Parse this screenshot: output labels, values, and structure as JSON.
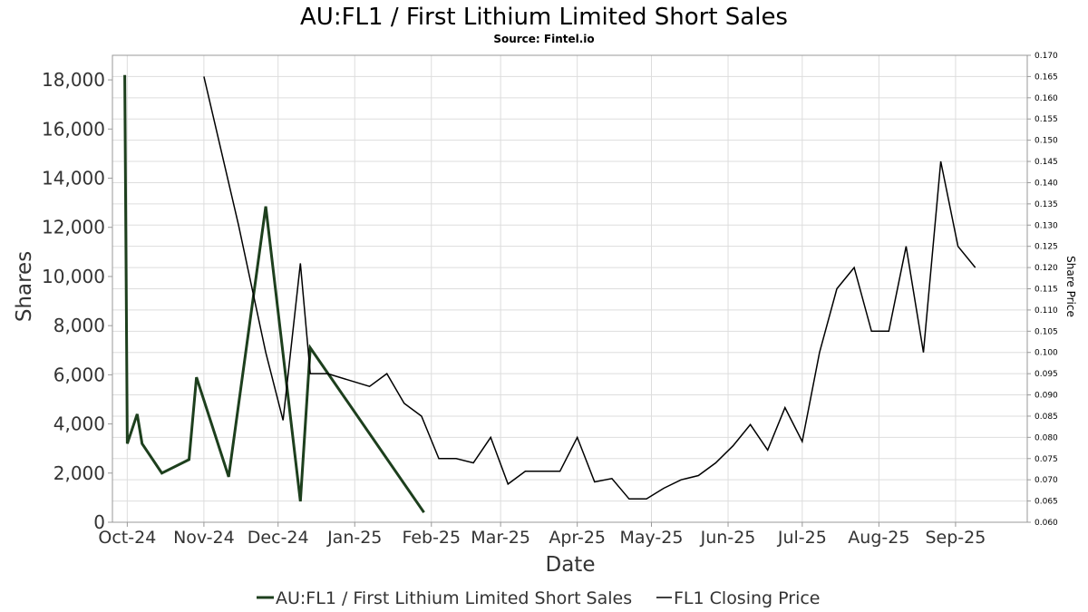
{
  "chart_data": {
    "type": "line",
    "title": "AU:FL1 / First Lithium Limited Short Sales",
    "subtitle": "Source: Fintel.io",
    "xlabel": "Date",
    "ylabel": "Shares",
    "y2label": "Share Price",
    "ylim": [
      0,
      19000
    ],
    "y2lim": [
      0.06,
      0.17
    ],
    "xlim": [
      "2024-09-25",
      "2025-09-30"
    ],
    "grid": true,
    "legend_position": "bottom",
    "yticks": [
      0,
      2000,
      4000,
      6000,
      8000,
      10000,
      12000,
      14000,
      16000,
      18000
    ],
    "ytick_labels": [
      "0",
      "2,000",
      "4,000",
      "6,000",
      "8,000",
      "10,000",
      "12,000",
      "14,000",
      "16,000",
      "18,000"
    ],
    "y2ticks": [
      0.06,
      0.065,
      0.07,
      0.075,
      0.08,
      0.085,
      0.09,
      0.095,
      0.1,
      0.105,
      0.11,
      0.115,
      0.12,
      0.125,
      0.13,
      0.135,
      0.14,
      0.145,
      0.15,
      0.155,
      0.16,
      0.165,
      0.17
    ],
    "y2tick_labels": [
      "0.060",
      "0.065",
      "0.070",
      "0.075",
      "0.080",
      "0.085",
      "0.090",
      "0.095",
      "0.100",
      "0.105",
      "0.110",
      "0.115",
      "0.120",
      "0.125",
      "0.130",
      "0.135",
      "0.140",
      "0.145",
      "0.150",
      "0.155",
      "0.160",
      "0.165",
      "0.170"
    ],
    "xticks": [
      "2024-10-01",
      "2024-11-01",
      "2024-12-01",
      "2025-01-01",
      "2025-02-01",
      "2025-03-01",
      "2025-04-01",
      "2025-05-01",
      "2025-06-01",
      "2025-07-01",
      "2025-08-01",
      "2025-09-01"
    ],
    "xtick_labels": [
      "Oct-24",
      "Nov-24",
      "Dec-24",
      "Jan-25",
      "Feb-25",
      "Mar-25",
      "Apr-25",
      "May-25",
      "Jun-25",
      "Jul-25",
      "Aug-25",
      "Sep-25"
    ],
    "series": [
      {
        "name": "AU:FL1 / First Lithium Limited Short Sales",
        "axis": "left",
        "color": "#1d3f1d",
        "points": [
          [
            "2024-09-30",
            18200
          ],
          [
            "2024-10-01",
            3200
          ],
          [
            "2024-10-05",
            4400
          ],
          [
            "2024-10-07",
            3200
          ],
          [
            "2024-10-15",
            2000
          ],
          [
            "2024-10-26",
            2550
          ],
          [
            "2024-10-29",
            5900
          ],
          [
            "2024-11-11",
            1850
          ],
          [
            "2024-11-26",
            12850
          ],
          [
            "2024-12-10",
            850
          ],
          [
            "2024-12-14",
            7100
          ],
          [
            "2025-01-29",
            400
          ]
        ]
      },
      {
        "name": "FL1 Closing Price",
        "axis": "right",
        "color": "#000000",
        "points": [
          [
            "2024-11-01",
            0.165
          ],
          [
            "2024-11-15",
            0.13
          ],
          [
            "2024-11-26",
            0.1
          ],
          [
            "2024-12-03",
            0.084
          ],
          [
            "2024-12-10",
            0.121
          ],
          [
            "2024-12-14",
            0.095
          ],
          [
            "2024-12-21",
            0.095
          ],
          [
            "2025-01-07",
            0.092
          ],
          [
            "2025-01-14",
            0.095
          ],
          [
            "2025-01-21",
            0.088
          ],
          [
            "2025-01-28",
            0.085
          ],
          [
            "2025-02-04",
            0.075
          ],
          [
            "2025-02-11",
            0.075
          ],
          [
            "2025-02-18",
            0.074
          ],
          [
            "2025-02-25",
            0.08
          ],
          [
            "2025-03-04",
            0.069
          ],
          [
            "2025-03-11",
            0.072
          ],
          [
            "2025-03-18",
            0.072
          ],
          [
            "2025-03-25",
            0.072
          ],
          [
            "2025-04-01",
            0.08
          ],
          [
            "2025-04-08",
            0.0695
          ],
          [
            "2025-04-15",
            0.0703
          ],
          [
            "2025-04-22",
            0.0655
          ],
          [
            "2025-04-29",
            0.0655
          ],
          [
            "2025-05-06",
            0.068
          ],
          [
            "2025-05-13",
            0.07
          ],
          [
            "2025-05-20",
            0.071
          ],
          [
            "2025-05-27",
            0.074
          ],
          [
            "2025-06-03",
            0.078
          ],
          [
            "2025-06-10",
            0.083
          ],
          [
            "2025-06-17",
            0.077
          ],
          [
            "2025-06-24",
            0.087
          ],
          [
            "2025-07-01",
            0.079
          ],
          [
            "2025-07-08",
            0.1
          ],
          [
            "2025-07-15",
            0.115
          ],
          [
            "2025-07-22",
            0.12
          ],
          [
            "2025-07-29",
            0.105
          ],
          [
            "2025-08-05",
            0.105
          ],
          [
            "2025-08-12",
            0.125
          ],
          [
            "2025-08-19",
            0.1
          ],
          [
            "2025-08-26",
            0.145
          ],
          [
            "2025-09-02",
            0.125
          ],
          [
            "2025-09-09",
            0.12
          ]
        ]
      }
    ]
  }
}
